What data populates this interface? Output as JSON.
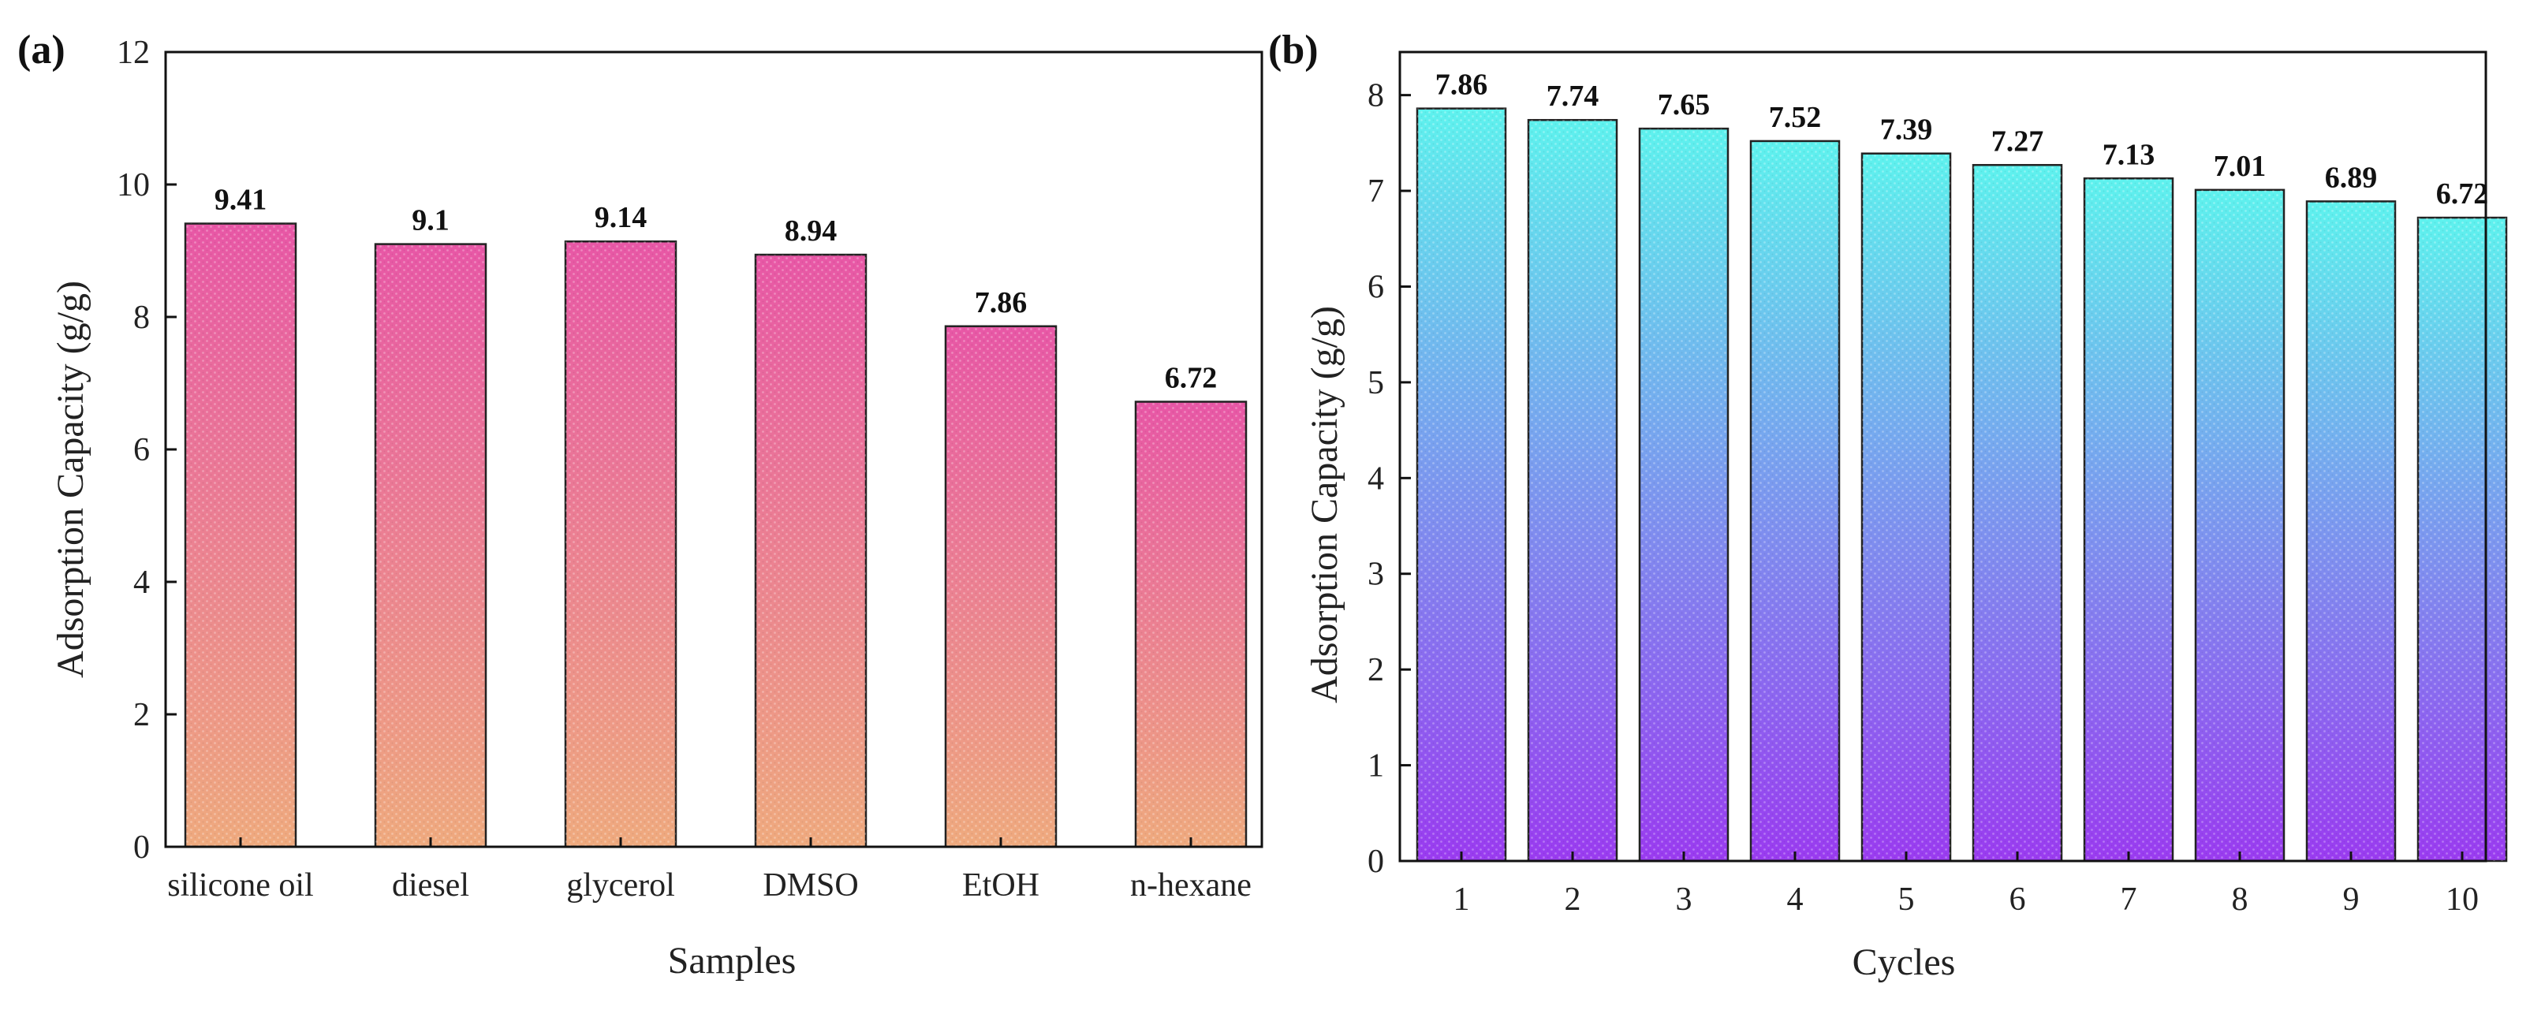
{
  "colors": {
    "panel_a_top": "#e857a6",
    "panel_a_bottom": "#efaa7e",
    "panel_b_top": "#5ef2ee",
    "panel_b_bottom": "#9a3bf0",
    "bar_stroke": "#222222",
    "axis": "#111111"
  },
  "chart_data": [
    {
      "panel_label": "(a)",
      "type": "bar",
      "title": "",
      "xlabel": "Samples",
      "ylabel": "Adsorption Capacity (g/g)",
      "ylim": [
        0,
        12
      ],
      "yticks": [
        0,
        2,
        4,
        6,
        8,
        10,
        12
      ],
      "categories": [
        "silicone oil",
        "diesel",
        "glycerol",
        "DMSO",
        "EtOH",
        "n-hexane"
      ],
      "values": [
        9.41,
        9.1,
        9.14,
        8.94,
        7.86,
        6.72
      ],
      "value_labels": [
        "9.41",
        "9.1",
        "9.14",
        "8.94",
        "7.86",
        "6.72"
      ],
      "grid": false
    },
    {
      "panel_label": "(b)",
      "type": "bar",
      "title": "",
      "xlabel": "Cycles",
      "ylabel": "Adsorption Capacity (g/g)",
      "ylim": [
        0,
        8.45
      ],
      "yticks": [
        0,
        1,
        2,
        3,
        4,
        5,
        6,
        7,
        8
      ],
      "categories": [
        "1",
        "2",
        "3",
        "4",
        "5",
        "6",
        "7",
        "8",
        "9",
        "10"
      ],
      "values": [
        7.86,
        7.74,
        7.65,
        7.52,
        7.39,
        7.27,
        7.13,
        7.01,
        6.89,
        6.72
      ],
      "value_labels": [
        "7.86",
        "7.74",
        "7.65",
        "7.52",
        "7.39",
        "7.27",
        "7.13",
        "7.01",
        "6.89",
        "6.72"
      ],
      "grid": false
    }
  ]
}
